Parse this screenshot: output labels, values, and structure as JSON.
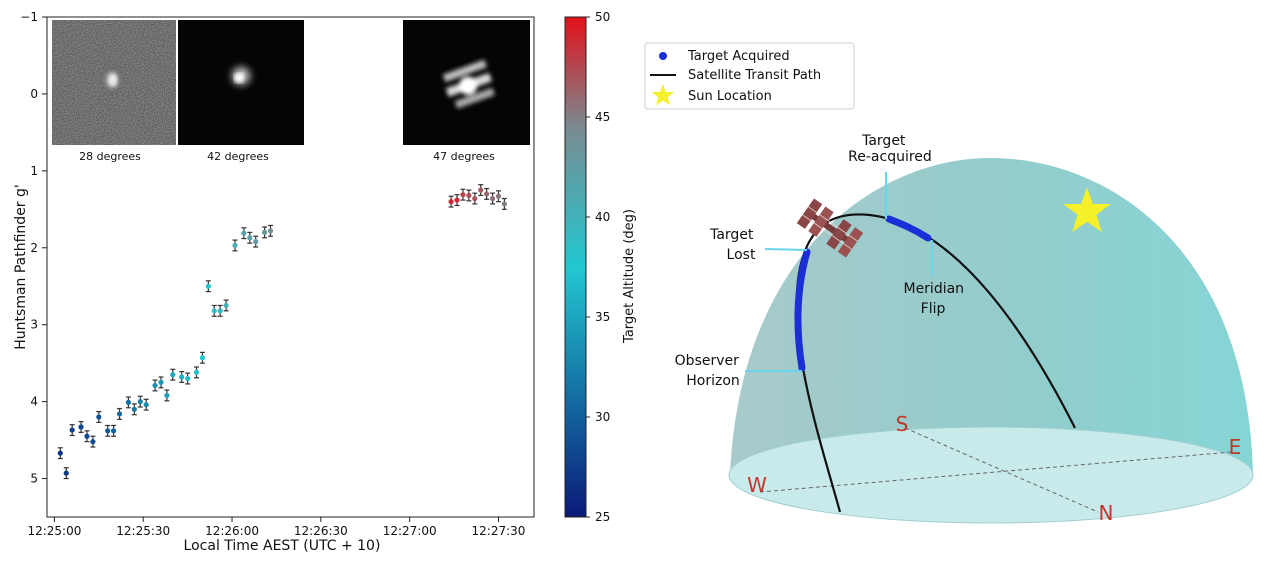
{
  "chart_data": [
    {
      "type": "scatter",
      "xlabel": "Local Time AEST (UTC + 10)",
      "ylabel": "Huntsman Pathfinder g'",
      "x_ticks": [
        "12:25:00",
        "12:25:30",
        "12:26:00",
        "12:26:30",
        "12:27:00",
        "12:27:30"
      ],
      "y_ticks": [
        "−1",
        "0",
        "1",
        "2",
        "3",
        "4",
        "5"
      ],
      "colorbar": {
        "label": "Target Altitude (deg)",
        "ticks": [
          "25",
          "30",
          "35",
          "40",
          "45",
          "50"
        ],
        "range": [
          25,
          50
        ],
        "color_low": "#0a1a78",
        "color_mid": "#21c8d0",
        "color_high": "#e3101a"
      },
      "insets": [
        {
          "caption": "28 degrees"
        },
        {
          "caption": "42 degrees"
        },
        {
          "caption": "47 degrees"
        }
      ],
      "series": [
        {
          "points": [
            {
              "t": "12:25:02",
              "mag": 4.67,
              "err": 0.07,
              "alt": 27.0
            },
            {
              "t": "12:25:04",
              "mag": 4.93,
              "err": 0.07,
              "alt": 27.3
            },
            {
              "t": "12:25:06",
              "mag": 4.37,
              "err": 0.07,
              "alt": 27.6
            },
            {
              "t": "12:25:09",
              "mag": 4.33,
              "err": 0.07,
              "alt": 28.0
            },
            {
              "t": "12:25:11",
              "mag": 4.45,
              "err": 0.07,
              "alt": 28.4
            },
            {
              "t": "12:25:13",
              "mag": 4.52,
              "err": 0.07,
              "alt": 28.8
            },
            {
              "t": "12:25:15",
              "mag": 4.2,
              "err": 0.07,
              "alt": 29.2
            },
            {
              "t": "12:25:18",
              "mag": 4.38,
              "err": 0.07,
              "alt": 29.7
            },
            {
              "t": "12:25:20",
              "mag": 4.38,
              "err": 0.07,
              "alt": 30.2
            },
            {
              "t": "12:25:22",
              "mag": 4.16,
              "err": 0.07,
              "alt": 30.7
            },
            {
              "t": "12:25:25",
              "mag": 4.01,
              "err": 0.07,
              "alt": 31.2
            },
            {
              "t": "12:25:27",
              "mag": 4.1,
              "err": 0.07,
              "alt": 31.8
            },
            {
              "t": "12:25:29",
              "mag": 4.0,
              "err": 0.07,
              "alt": 32.3
            },
            {
              "t": "12:25:31",
              "mag": 4.04,
              "err": 0.07,
              "alt": 32.9
            },
            {
              "t": "12:25:34",
              "mag": 3.79,
              "err": 0.07,
              "alt": 33.5
            },
            {
              "t": "12:25:36",
              "mag": 3.75,
              "err": 0.07,
              "alt": 34.0
            },
            {
              "t": "12:25:38",
              "mag": 3.92,
              "err": 0.07,
              "alt": 34.6
            },
            {
              "t": "12:25:40",
              "mag": 3.65,
              "err": 0.07,
              "alt": 35.2
            },
            {
              "t": "12:25:43",
              "mag": 3.68,
              "err": 0.07,
              "alt": 35.8
            },
            {
              "t": "12:25:45",
              "mag": 3.7,
              "err": 0.07,
              "alt": 36.4
            },
            {
              "t": "12:25:48",
              "mag": 3.62,
              "err": 0.07,
              "alt": 37.0
            },
            {
              "t": "12:25:50",
              "mag": 3.43,
              "err": 0.07,
              "alt": 37.6
            },
            {
              "t": "12:25:52",
              "mag": 2.5,
              "err": 0.07,
              "alt": 38.2
            },
            {
              "t": "12:25:54",
              "mag": 2.82,
              "err": 0.07,
              "alt": 38.9
            },
            {
              "t": "12:25:56",
              "mag": 2.82,
              "err": 0.07,
              "alt": 39.5
            },
            {
              "t": "12:25:58",
              "mag": 2.75,
              "err": 0.07,
              "alt": 40.1
            },
            {
              "t": "12:26:01",
              "mag": 1.97,
              "err": 0.07,
              "alt": 40.8
            },
            {
              "t": "12:26:04",
              "mag": 1.81,
              "err": 0.07,
              "alt": 41.4
            },
            {
              "t": "12:26:06",
              "mag": 1.87,
              "err": 0.07,
              "alt": 42.0
            },
            {
              "t": "12:26:08",
              "mag": 1.92,
              "err": 0.07,
              "alt": 42.6
            },
            {
              "t": "12:26:11",
              "mag": 1.8,
              "err": 0.07,
              "alt": 43.2
            },
            {
              "t": "12:26:13",
              "mag": 1.78,
              "err": 0.07,
              "alt": 43.8
            },
            {
              "t": "12:27:14",
              "mag": 1.4,
              "err": 0.07,
              "alt": 48.7
            },
            {
              "t": "12:27:16",
              "mag": 1.38,
              "err": 0.07,
              "alt": 48.9
            },
            {
              "t": "12:27:18",
              "mag": 1.31,
              "err": 0.07,
              "alt": 47.8
            },
            {
              "t": "12:27:20",
              "mag": 1.32,
              "err": 0.07,
              "alt": 47.4
            },
            {
              "t": "12:27:22",
              "mag": 1.36,
              "err": 0.07,
              "alt": 47.0
            },
            {
              "t": "12:27:24",
              "mag": 1.25,
              "err": 0.07,
              "alt": 46.6
            },
            {
              "t": "12:27:26",
              "mag": 1.3,
              "err": 0.07,
              "alt": 46.2
            },
            {
              "t": "12:27:28",
              "mag": 1.36,
              "err": 0.07,
              "alt": 45.8
            },
            {
              "t": "12:27:30",
              "mag": 1.33,
              "err": 0.07,
              "alt": 45.4
            },
            {
              "t": "12:27:32",
              "mag": 1.43,
              "err": 0.07,
              "alt": 45.0
            }
          ]
        }
      ]
    }
  ],
  "diagram": {
    "legend": [
      {
        "label": "Target Acquired",
        "marker": "dot",
        "color": "#1a2fd6"
      },
      {
        "label": "Satellite Transit Path",
        "marker": "line",
        "color": "#111111"
      },
      {
        "label": "Sun Location",
        "marker": "star",
        "color": "#f5f02a"
      }
    ],
    "annotations": {
      "reacquired": [
        "Target",
        "Re-acquired"
      ],
      "lost": [
        "Target",
        "Lost"
      ],
      "meridian": [
        "Meridian",
        "Flip"
      ],
      "horizon": [
        "Observer",
        "Horizon"
      ]
    },
    "compass": {
      "s": "S",
      "e": "E",
      "w": "W",
      "n": "N"
    },
    "dome_color": "#8fcfcf",
    "compass_color": "#c0392b",
    "annotation_line_color": "#6ad4ee"
  }
}
